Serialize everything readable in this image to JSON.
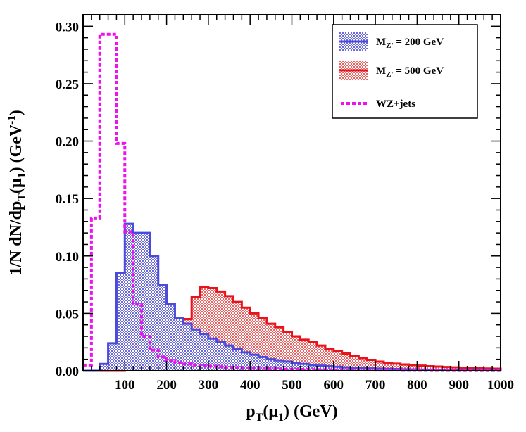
{
  "chart_data": {
    "type": "histogram",
    "title": "",
    "xlabel": "p_T(μ_1) (GeV)",
    "ylabel": "1/N dN/dp_T(μ_1) (GeV^-1)",
    "xlim": [
      0,
      1000
    ],
    "ylim": [
      0,
      0.31
    ],
    "bin_width": 20,
    "xticks": [
      100,
      200,
      300,
      400,
      500,
      600,
      700,
      800,
      900,
      1000
    ],
    "yticks": [
      0.0,
      0.05,
      0.1,
      0.15,
      0.2,
      0.25,
      0.3
    ],
    "ytick_labels": [
      "0.00",
      "0.05",
      "0.10",
      "0.15",
      "0.20",
      "0.25",
      "0.30"
    ],
    "legend_position": "top-right",
    "series": [
      {
        "name": "M_Z' = 200 GeV",
        "color": "#4a4adb",
        "fill": "hatched",
        "bins": [
          0,
          20,
          40,
          60,
          80,
          100,
          120,
          140,
          160,
          180,
          200,
          220,
          240,
          260,
          280,
          300,
          320,
          340,
          360,
          380,
          400,
          420,
          440,
          460,
          480,
          500,
          520,
          540,
          560,
          580,
          600,
          620,
          640,
          660,
          680,
          700,
          720,
          740,
          760,
          780,
          800,
          820,
          840,
          860,
          880,
          900,
          920,
          940,
          960,
          980
        ],
        "values": [
          0,
          0.0,
          0.006,
          0.024,
          0.085,
          0.128,
          0.12,
          0.12,
          0.1,
          0.075,
          0.058,
          0.046,
          0.041,
          0.036,
          0.032,
          0.028,
          0.025,
          0.022,
          0.019,
          0.016,
          0.014,
          0.012,
          0.01,
          0.009,
          0.008,
          0.007,
          0.006,
          0.005,
          0.0045,
          0.004,
          0.0035,
          0.003,
          0.0027,
          0.0024,
          0.0021,
          0.0019,
          0.0017,
          0.0015,
          0.0013,
          0.0012,
          0.0011,
          0.001,
          0.0009,
          0.0008,
          0.0007,
          0.0006,
          0.0006,
          0.0005,
          0.0005,
          0.0004
        ]
      },
      {
        "name": "M_Z' = 500 GeV",
        "color": "#e8141c",
        "fill": "hatched",
        "bins": [
          0,
          20,
          40,
          60,
          80,
          100,
          120,
          140,
          160,
          180,
          200,
          220,
          240,
          260,
          280,
          300,
          320,
          340,
          360,
          380,
          400,
          420,
          440,
          460,
          480,
          500,
          520,
          540,
          560,
          580,
          600,
          620,
          640,
          660,
          680,
          700,
          720,
          740,
          760,
          780,
          800,
          820,
          840,
          860,
          880,
          900,
          920,
          940,
          960,
          980
        ],
        "values": [
          0,
          0,
          0,
          0,
          0,
          0.0005,
          0.001,
          0.002,
          0.005,
          0.009,
          0.015,
          0.026,
          0.045,
          0.064,
          0.073,
          0.072,
          0.069,
          0.065,
          0.06,
          0.055,
          0.05,
          0.046,
          0.041,
          0.038,
          0.034,
          0.03,
          0.027,
          0.025,
          0.022,
          0.019,
          0.017,
          0.015,
          0.013,
          0.011,
          0.0095,
          0.008,
          0.007,
          0.0062,
          0.0055,
          0.005,
          0.0045,
          0.004,
          0.0037,
          0.0033,
          0.003,
          0.0027,
          0.0024,
          0.0022,
          0.002,
          0.0018
        ]
      },
      {
        "name": "WZ+jets",
        "color": "#ee11ee",
        "fill": "none",
        "line_style": "dashed",
        "bins": [
          0,
          20,
          40,
          60,
          80,
          100,
          120,
          140,
          160,
          180,
          200,
          220,
          240,
          260,
          280,
          300,
          320,
          340,
          360,
          380,
          400,
          420,
          440,
          460,
          480,
          500,
          520,
          540,
          560,
          580,
          600,
          620,
          640,
          660,
          680,
          700,
          720,
          740,
          760,
          780,
          800,
          820,
          840,
          860,
          880,
          900,
          920,
          940,
          960,
          980
        ],
        "values": [
          0.005,
          0.133,
          0.293,
          0.293,
          0.198,
          0.121,
          0.058,
          0.03,
          0.018,
          0.012,
          0.009,
          0.007,
          0.006,
          0.005,
          0.0045,
          0.004,
          0.0035,
          0.003,
          0.0028,
          0.0025,
          0.0022,
          0.002,
          0.0018,
          0.0016,
          0.0014,
          0.0013,
          0.0012,
          0.0011,
          0.001,
          0.0009,
          0.0008,
          0.0007,
          0.0007,
          0.0006,
          0.0006,
          0.0005,
          0.0005,
          0.0005,
          0.0004,
          0.0004,
          0.0004,
          0.0003,
          0.0003,
          0.0003,
          0.0003,
          0.0002,
          0.0002,
          0.0002,
          0.0002,
          0.0002
        ]
      }
    ],
    "legend": {
      "entries": [
        {
          "main": "M",
          "sub": "Z'",
          "rest": " = 200 GeV",
          "series": 0
        },
        {
          "main": "M",
          "sub": "Z'",
          "rest": " = 500 GeV",
          "series": 1
        },
        {
          "main": "WZ+jets",
          "sub": "",
          "rest": "",
          "series": 2
        }
      ]
    },
    "axis_title_parts": {
      "x": {
        "a": "p",
        "a_sub": "T",
        "b": "(μ",
        "b_sub": "1",
        "c": ") (GeV)"
      },
      "y": {
        "a": "1/N dN/dp",
        "a_sub": "T",
        "b": "(μ",
        "b_sub": "1",
        "c": ") (GeV",
        "c_sup": "-1",
        "d": ")"
      }
    }
  }
}
